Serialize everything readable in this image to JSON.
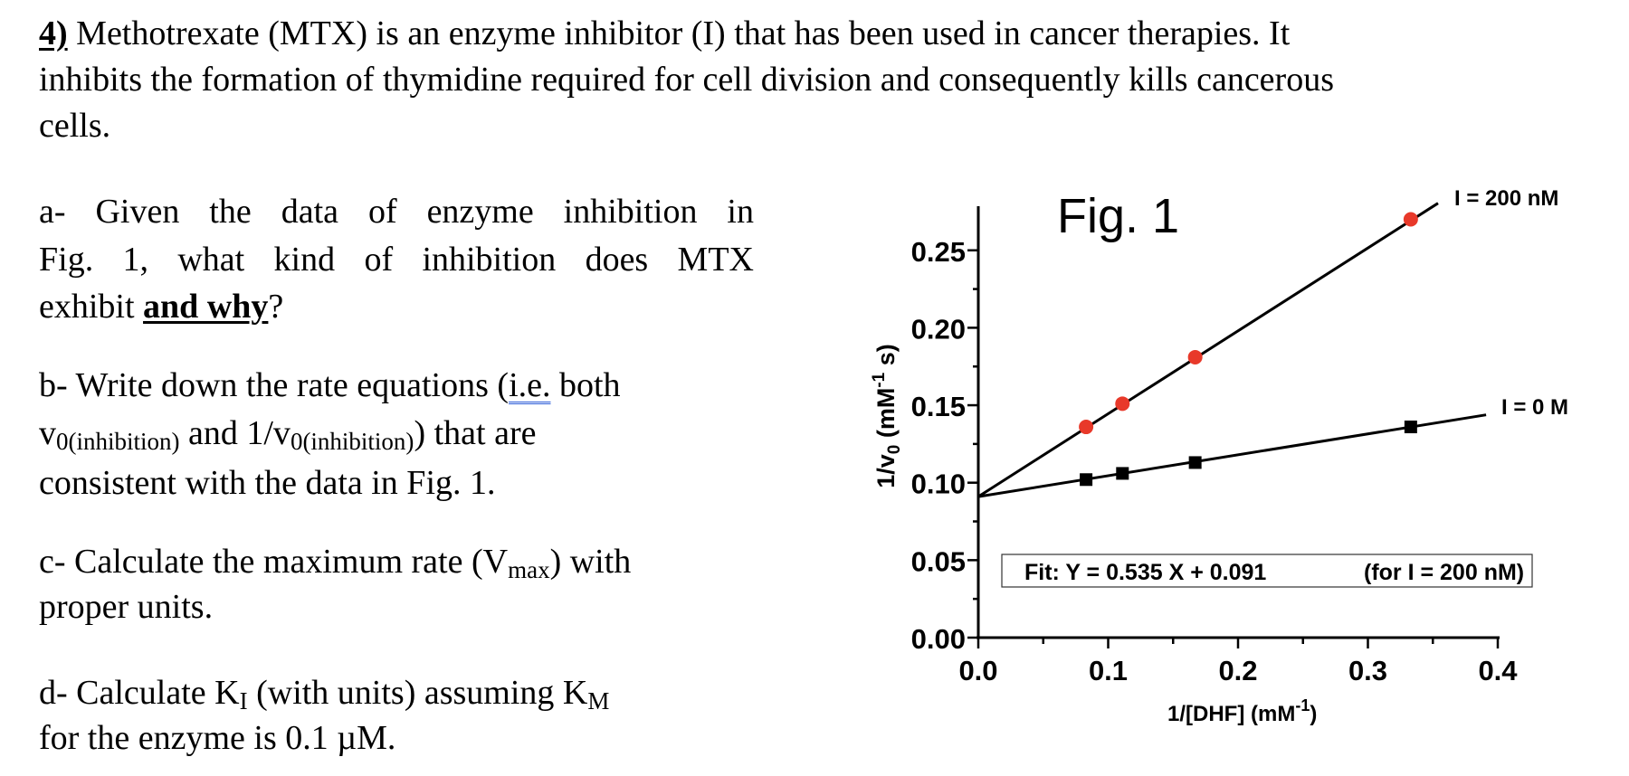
{
  "problem": {
    "number": "4)",
    "intro_lines": [
      " Methotrexate (MTX) is an enzyme inhibitor (I) that has been used in cancer therapies. It",
      "inhibits the formation of thymidine required for cell division and consequently kills cancerous",
      "cells."
    ]
  },
  "questions": {
    "a": {
      "line1": "a- Given the data of enzyme inhibition in",
      "line2": "Fig. 1, what kind of inhibition does MTX",
      "line3_pre": "exhibit ",
      "line3_bold": "and why",
      "line3_post": "?"
    },
    "b": {
      "line1_pre": "b- Write down the rate equations (",
      "line1_ie": "i.e.",
      "line1_post": " both",
      "v0": "v",
      "v0_sub": "0(inhibition)",
      "mid": " and 1/v",
      "v0_sub2": "0(inhibition)",
      "line2_post": ") that are",
      "line3": "consistent with the data in Fig. 1."
    },
    "c": {
      "line1_pre": "c- Calculate the maximum rate (V",
      "line1_sub": "max",
      "line1_post": ") with",
      "line2": "proper units."
    },
    "d": {
      "line1_pre": "d- Calculate K",
      "line1_sub": "I",
      "line1_mid": " (with units) assuming K",
      "line1_sub2": "M",
      "line2": "for the enzyme is 0.1 µM."
    }
  },
  "chart_data": {
    "type": "scatter",
    "title": "Fig. 1",
    "xlabel": "1/[DHF] (mM-1)",
    "ylabel": "1/v0 (mM-1 s)",
    "xlim": [
      0.0,
      0.4
    ],
    "ylim": [
      0.0,
      0.27
    ],
    "x_ticks": [
      "0.0",
      "0.1",
      "0.2",
      "0.3",
      "0.4"
    ],
    "y_ticks": [
      "0.00",
      "0.05",
      "0.10",
      "0.15",
      "0.20",
      "0.25"
    ],
    "grid": false,
    "series": [
      {
        "name": "I = 200 nM",
        "marker": "circle",
        "color": "#e8392a",
        "x": [
          0.083,
          0.111,
          0.167,
          0.333
        ],
        "y": [
          0.136,
          0.151,
          0.181,
          0.27
        ],
        "fit": {
          "slope": 0.535,
          "intercept": 0.091
        }
      },
      {
        "name": "I = 0 M",
        "marker": "square",
        "color": "#000000",
        "x": [
          0.083,
          0.111,
          0.167,
          0.333
        ],
        "y": [
          0.102,
          0.106,
          0.113,
          0.136
        ],
        "fit": {
          "slope": 0.135,
          "intercept": 0.091
        }
      }
    ],
    "annotations": {
      "fit_label": "Fit:  Y = 0.535 X + 0.091",
      "fit_note": "(for I = 200 nM)",
      "label_inhibited": "I = 200 nM",
      "label_uninhibited": "I = 0 M"
    }
  }
}
